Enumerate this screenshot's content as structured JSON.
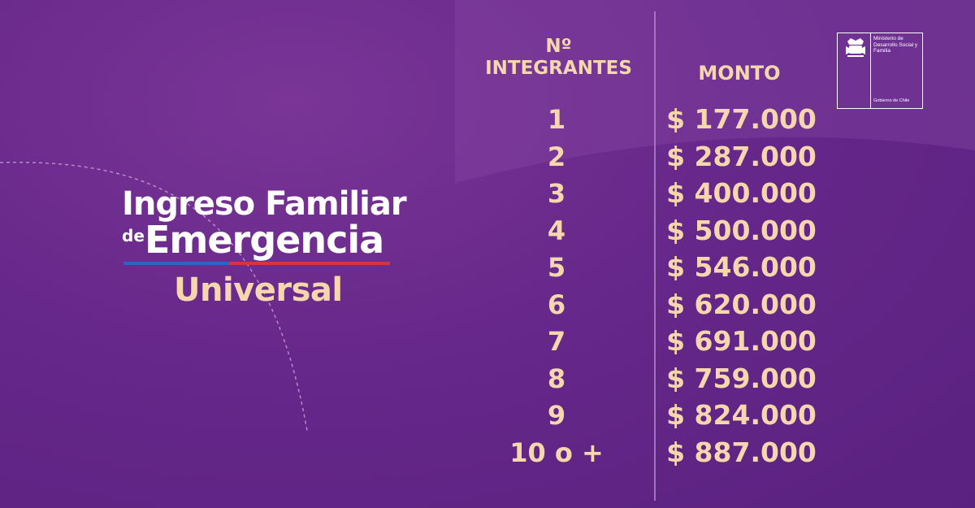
{
  "logo": {
    "line1": "Ingreso Familiar",
    "line2_prefix": "de",
    "line2": "Emergencia",
    "line3": "Universal"
  },
  "ministry": {
    "name": "Ministerio de Desarrollo Social y Familia",
    "government": "Gobierno de Chile",
    "emblem_icon": "chile-coat-of-arms-icon"
  },
  "table": {
    "header_number_symbol": "Nº",
    "header_members": "INTEGRANTES",
    "header_amount": "MONTO",
    "rows": [
      {
        "members": "1",
        "amount": "$ 177.000"
      },
      {
        "members": "2",
        "amount": "$ 287.000"
      },
      {
        "members": "3",
        "amount": "$ 400.000"
      },
      {
        "members": "4",
        "amount": "$ 500.000"
      },
      {
        "members": "5",
        "amount": "$ 546.000"
      },
      {
        "members": "6",
        "amount": "$ 620.000"
      },
      {
        "members": "7",
        "amount": "$ 691.000"
      },
      {
        "members": "8",
        "amount": "$ 759.000"
      },
      {
        "members": "9",
        "amount": "$ 824.000"
      },
      {
        "members": "10 o +",
        "amount": "$ 887.000"
      }
    ]
  },
  "colors": {
    "background": "#66288a",
    "accent_text": "#f6d7ad",
    "flag_blue": "#2e63c9",
    "flag_red": "#d8343f"
  }
}
